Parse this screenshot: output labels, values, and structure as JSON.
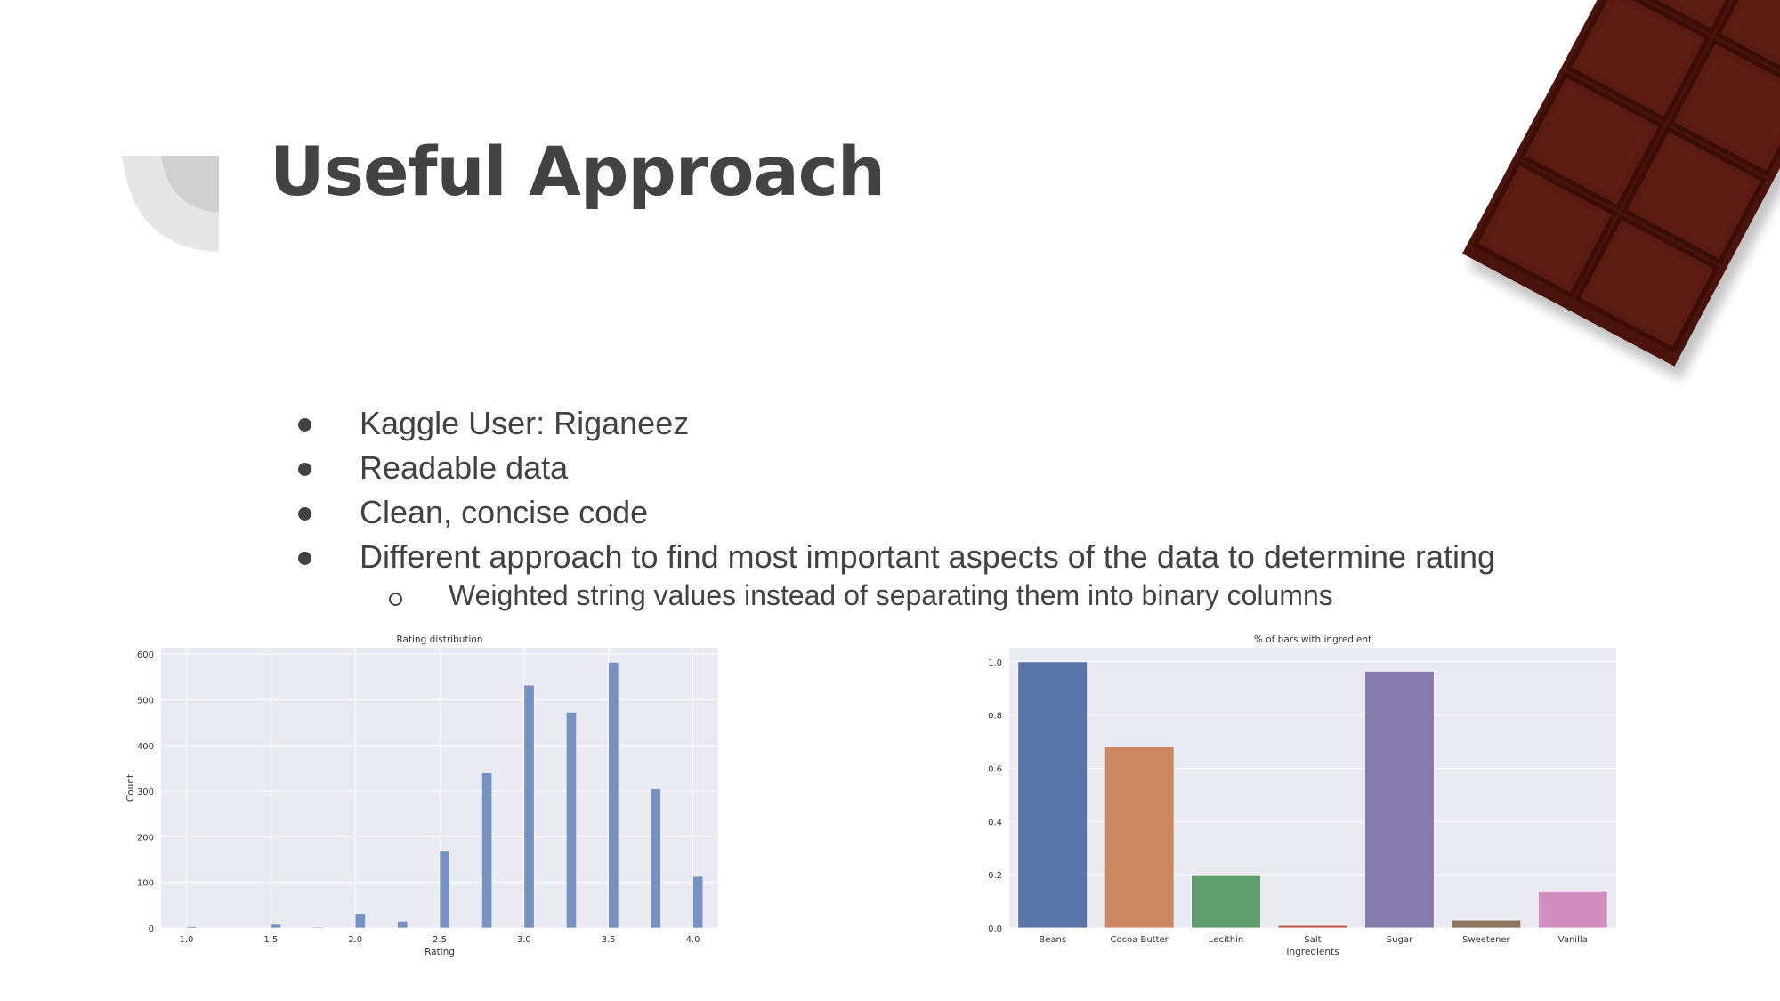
{
  "slide": {
    "title": "Useful Approach",
    "bullets": [
      {
        "text": "Kaggle User: Riganeez",
        "level": 1
      },
      {
        "text": "Readable data",
        "level": 1
      },
      {
        "text": "Clean, concise code",
        "level": 1
      },
      {
        "text": "Different approach to find most important aspects of the data to determine rating",
        "level": 1
      },
      {
        "text": "Weighted string values instead of separating them into binary columns",
        "level": 2
      }
    ],
    "decoration": "chocolate-bar-image"
  },
  "chart_data": [
    {
      "type": "bar",
      "subtype": "histogram",
      "title": "Rating distribution",
      "xlabel": "Rating",
      "ylabel": "Count",
      "x": [
        1.0,
        1.5,
        1.75,
        2.0,
        2.25,
        2.5,
        2.75,
        3.0,
        3.25,
        3.5,
        3.75,
        4.0
      ],
      "values": [
        3,
        8,
        2,
        32,
        15,
        170,
        340,
        532,
        473,
        582,
        305,
        113
      ],
      "xlim": [
        0.85,
        4.15
      ],
      "ylim": [
        0,
        614
      ],
      "xticks": [
        "1.0",
        "1.5",
        "2.0",
        "2.5",
        "3.0",
        "3.5",
        "4.0"
      ],
      "yticks": [
        "0",
        "100",
        "200",
        "300",
        "400",
        "500",
        "600"
      ],
      "grid": true,
      "color": "#7592c2",
      "background": "#eaeaf2"
    },
    {
      "type": "bar",
      "title": "% of bars with ingredient",
      "xlabel": "Ingredients",
      "ylabel": "",
      "categories": [
        "Beans",
        "Cocoa Butter",
        "Lecithin",
        "Salt",
        "Sugar",
        "Sweetener",
        "Vanilla"
      ],
      "values": [
        1.0,
        0.68,
        0.2,
        0.01,
        0.965,
        0.03,
        0.14
      ],
      "colors": [
        "#5875a6",
        "#cd8863",
        "#5f9e6e",
        "#c0594e",
        "#877bad",
        "#8c7461",
        "#d18fbf"
      ],
      "ylim": [
        0,
        1.053
      ],
      "yticks": [
        "0.0",
        "0.2",
        "0.4",
        "0.6",
        "0.8",
        "1.0"
      ],
      "grid": true,
      "background": "#eaeaf2"
    }
  ]
}
